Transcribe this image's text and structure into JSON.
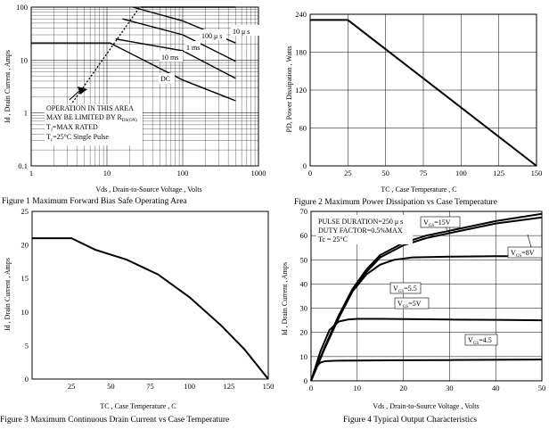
{
  "chart_data": [
    {
      "type": "line",
      "caption": "Figure    1    Maximum Forward Bias Safe Operating Area",
      "xlabel": "Vds , Drain-to-Source Voltage , Volts",
      "ylabel": "Id , Drain Current , Amps",
      "xscale": "log",
      "yscale": "log",
      "xlim": [
        1,
        1000
      ],
      "ylim": [
        0.1,
        100
      ],
      "xticks": [
        1,
        10,
        100,
        1000
      ],
      "xtick_labels": [
        "1",
        "10",
        "100",
        "1000"
      ],
      "yticks": [
        0.1,
        1,
        10,
        100
      ],
      "ytick_labels": [
        "0.1",
        "1",
        "10",
        "100"
      ],
      "grid": true,
      "series": [
        {
          "name": "10 μ s",
          "x": [
            28,
            100,
            500
          ],
          "y": [
            100,
            100,
            100
          ]
        },
        {
          "name": "100 μ s",
          "x": [
            22,
            100,
            500
          ],
          "y": [
            100,
            55,
            21
          ]
        },
        {
          "name": "1 ms",
          "x": [
            16,
            100,
            500
          ],
          "y": [
            60,
            30,
            9.5
          ]
        },
        {
          "name": "10 ms",
          "x": [
            13,
            100,
            500
          ],
          "y": [
            25,
            15,
            4.5
          ]
        },
        {
          "name": "DC",
          "x": [
            1,
            11,
            100,
            500
          ],
          "y": [
            21,
            21,
            4.2,
            1.7
          ]
        },
        {
          "name": "Rds(on) limit",
          "style": "dashed",
          "x": [
            2,
            27
          ],
          "y": [
            0.5,
            100
          ]
        }
      ],
      "annotations": {
        "region_lines": [
          "OPERATION IN THIS AREA",
          "MAY BE LIMITED BY R",
          "T",
          "=MAX RATED",
          "T",
          "=25°C   Single Pulse"
        ],
        "rds_sub": "DS(ON)",
        "tj_sub": "J",
        "tc_sub": "c",
        "labels": [
          "10 μ s",
          "100 μ s",
          "1 ms",
          "10 ms",
          "DC"
        ]
      }
    },
    {
      "type": "line",
      "caption": "Figure    2    Maximum Power Dissipation vs Case Temperature",
      "xlabel": "TC , Case Temperature , C",
      "ylabel": "PD, Power Dissipation ,  Watts",
      "xlim": [
        0,
        150
      ],
      "ylim": [
        0,
        240
      ],
      "xticks": [
        0,
        25,
        50,
        75,
        100,
        125,
        150
      ],
      "xtick_labels": [
        "0",
        "25",
        "50",
        "75",
        "100",
        "125",
        "150"
      ],
      "yticks": [
        0,
        60,
        120,
        180,
        240
      ],
      "ytick_labels": [
        "0",
        "60",
        "120",
        "180",
        "240"
      ],
      "grid": true,
      "series": [
        {
          "name": "PD",
          "x": [
            0,
            25,
            150
          ],
          "y": [
            231,
            231,
            0
          ]
        }
      ]
    },
    {
      "type": "line",
      "caption": "Figure    3    Maximum Continuous Drain Current vs Case Temperature",
      "xlabel": "TC , Case Temperature ,    C",
      "ylabel": "Id , Drain Current , Amps",
      "xlim": [
        0,
        150
      ],
      "ylim": [
        0,
        25
      ],
      "xticks": [
        25,
        50,
        75,
        100,
        125,
        150
      ],
      "xtick_labels": [
        "25",
        "50",
        "75",
        "100",
        "125",
        "150"
      ],
      "yticks": [
        0,
        5,
        10,
        15,
        20,
        25
      ],
      "ytick_labels": [
        "0",
        "5",
        "10",
        "15",
        "20",
        "25"
      ],
      "grid": false,
      "series": [
        {
          "name": "Id",
          "x": [
            0,
            25,
            40,
            60,
            80,
            100,
            120,
            135,
            150
          ],
          "y": [
            21,
            21,
            19.3,
            17.8,
            15.6,
            12.2,
            8.0,
            4.4,
            0
          ]
        }
      ]
    },
    {
      "type": "line",
      "caption": "Figure    4    Typical Output Characteristics",
      "xlabel": "Vds , Drain-to-Source Voltage , Volts",
      "ylabel": "Id , Drain Current , Amps",
      "xlim": [
        0,
        50
      ],
      "ylim": [
        0,
        70
      ],
      "xticks": [
        0,
        10,
        20,
        30,
        40,
        50
      ],
      "xtick_labels": [
        "0",
        "10",
        "20",
        "30",
        "40",
        "50"
      ],
      "yticks": [
        0,
        10,
        20,
        30,
        40,
        50,
        60,
        70
      ],
      "ytick_labels": [
        "0",
        "10",
        "20",
        "30",
        "40",
        "50",
        "60",
        "70"
      ],
      "grid": true,
      "series": [
        {
          "name": "VGS=15V",
          "x": [
            0,
            3,
            6,
            9,
            12,
            15,
            20,
            25,
            30,
            40,
            50
          ],
          "y": [
            0,
            14,
            27,
            38,
            46,
            52,
            57,
            60,
            62,
            66,
            69
          ]
        },
        {
          "name": "VGS=8V",
          "x": [
            0,
            3,
            6,
            9,
            12,
            15,
            20,
            25,
            30,
            40,
            50
          ],
          "y": [
            0,
            13.5,
            26,
            37,
            45,
            51,
            56,
            59,
            61,
            65,
            67.5
          ]
        },
        {
          "name": "VGS=5.5",
          "x": [
            0,
            3,
            6,
            9,
            12,
            15,
            18,
            22,
            30,
            40,
            50
          ],
          "y": [
            0,
            14,
            27,
            37,
            44,
            48,
            50,
            51,
            51.3,
            51.5,
            51.5
          ]
        },
        {
          "name": "VGS=5V",
          "x": [
            0,
            2,
            4,
            6,
            8,
            10,
            15,
            20,
            30,
            40,
            50
          ],
          "y": [
            0,
            12,
            21,
            24.5,
            25.3,
            25.6,
            25.6,
            25.5,
            25.3,
            25.2,
            25.0
          ]
        },
        {
          "name": "VGS=4.5",
          "x": [
            0,
            1,
            2,
            3,
            5,
            10,
            20,
            30,
            40,
            50
          ],
          "y": [
            0,
            5.5,
            7.5,
            8.1,
            8.3,
            8.4,
            8.5,
            8.6,
            8.7,
            8.8
          ]
        }
      ],
      "conditions": [
        "PULSE DURATION=250 μ s",
        "DUTY FACTOR=0.5%MAX",
        "Tc = 25°C"
      ],
      "curve_labels": [
        {
          "pre": "V",
          "sub": "GS",
          "post": "=15V"
        },
        {
          "pre": "V",
          "sub": "GS",
          "post": "=8V"
        },
        {
          "pre": "V",
          "sub": "GS",
          "post": "=5.5"
        },
        {
          "pre": "V",
          "sub": "GS",
          "post": "=5V"
        },
        {
          "pre": "V",
          "sub": "GS",
          "post": "=4.5"
        }
      ]
    }
  ]
}
